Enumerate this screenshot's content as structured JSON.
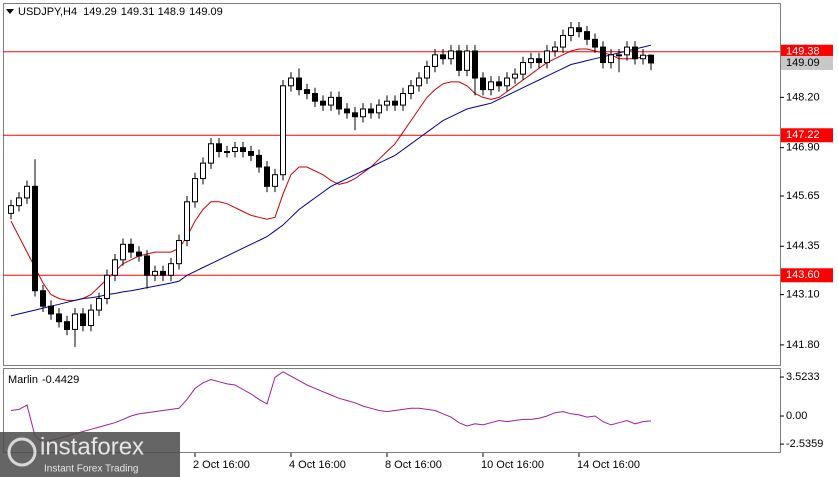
{
  "watermark": {
    "brand": "instaforex",
    "tagline": "Instant Forex Trading"
  },
  "chart_data": [
    {
      "type": "candlestick",
      "symbol": "USDJPY,H4",
      "categories": [
        null,
        null,
        null,
        null,
        null,
        null,
        null,
        null,
        null,
        null,
        null,
        null,
        null,
        null,
        null,
        null,
        null,
        null,
        null,
        null,
        null,
        null,
        null,
        "2 Oct 16:00",
        null,
        null,
        null,
        null,
        null,
        null,
        null,
        null,
        null,
        null,
        null,
        "4 Oct 16:00",
        null,
        null,
        null,
        null,
        null,
        null,
        null,
        null,
        null,
        null,
        null,
        "8 Oct 16:00",
        null,
        null,
        null,
        null,
        null,
        null,
        null,
        null,
        null,
        null,
        null,
        "10 Oct 16:00",
        null,
        null,
        null,
        null,
        null,
        null,
        null,
        null,
        null,
        null,
        null,
        "14 Oct 16:00",
        null,
        null,
        null,
        null,
        null,
        null,
        null,
        null,
        null
      ],
      "ylim": [
        141.28,
        150.64
      ],
      "yticks": [
        {
          "value": 148.2,
          "label": "148.20"
        },
        {
          "value": 146.9,
          "label": "146.90"
        },
        145.65,
        144.35,
        {
          "value": 143.1,
          "label": "143.10"
        },
        {
          "value": 141.8,
          "label": "141.80"
        }
      ],
      "up_color": "#ffffff",
      "down_color": "#000000",
      "outline_color": "#000000",
      "candles": {
        "open": [
          145.2,
          145.4,
          145.6,
          145.9,
          143.2,
          142.8,
          142.6,
          142.4,
          142.2,
          142.6,
          142.3,
          142.7,
          143.0,
          143.6,
          144.0,
          144.4,
          144.2,
          144.1,
          143.6,
          143.7,
          143.6,
          143.9,
          144.5,
          145.5,
          146.1,
          146.5,
          147.0,
          146.8,
          146.8,
          146.9,
          146.8,
          146.7,
          146.4,
          145.9,
          146.2,
          148.5,
          148.7,
          148.4,
          148.3,
          148.1,
          148.0,
          148.2,
          147.9,
          147.8,
          147.7,
          147.9,
          147.8,
          148.0,
          148.1,
          148.0,
          148.3,
          148.5,
          148.7,
          149.0,
          149.3,
          149.2,
          149.4,
          148.9,
          149.4,
          148.7,
          148.4,
          148.6,
          148.5,
          148.7,
          148.8,
          149.1,
          149.2,
          149.1,
          149.4,
          149.5,
          149.8,
          150.0,
          149.9,
          149.7,
          149.5,
          149.1,
          149.3,
          149.3,
          149.5,
          149.2,
          149.29
        ],
        "high": [
          145.55,
          145.75,
          146.05,
          146.6,
          143.35,
          142.95,
          142.75,
          142.55,
          142.75,
          142.75,
          142.85,
          143.15,
          143.75,
          144.15,
          144.55,
          144.55,
          144.35,
          144.25,
          143.85,
          143.85,
          144.05,
          144.65,
          145.65,
          146.25,
          146.65,
          147.15,
          147.15,
          146.95,
          147.05,
          147.05,
          146.95,
          146.85,
          146.55,
          146.35,
          148.65,
          148.85,
          148.95,
          148.55,
          148.45,
          148.25,
          148.35,
          148.35,
          148.05,
          147.95,
          148.05,
          148.05,
          148.15,
          148.25,
          148.25,
          148.45,
          148.65,
          148.85,
          149.15,
          149.45,
          149.45,
          149.55,
          149.55,
          149.55,
          149.55,
          148.85,
          148.75,
          148.75,
          148.85,
          148.95,
          149.25,
          149.35,
          149.35,
          149.55,
          149.65,
          149.95,
          150.15,
          150.15,
          150.05,
          149.85,
          149.65,
          149.45,
          149.45,
          149.65,
          149.65,
          149.45,
          149.31
        ],
        "low": [
          145.05,
          145.25,
          145.45,
          143.05,
          142.65,
          142.45,
          142.25,
          142.05,
          141.75,
          142.15,
          142.15,
          142.55,
          142.85,
          143.45,
          143.85,
          144.05,
          143.95,
          143.25,
          143.45,
          143.45,
          143.45,
          143.75,
          144.35,
          145.35,
          145.95,
          146.35,
          146.65,
          146.65,
          146.65,
          146.65,
          146.55,
          146.25,
          145.75,
          145.75,
          146.05,
          148.35,
          148.25,
          148.15,
          147.95,
          147.85,
          147.85,
          147.75,
          147.65,
          147.35,
          147.55,
          147.65,
          147.65,
          147.85,
          147.85,
          147.85,
          148.15,
          148.35,
          148.55,
          148.85,
          149.05,
          149.05,
          148.75,
          148.75,
          148.25,
          148.25,
          148.25,
          148.35,
          148.35,
          148.55,
          148.65,
          148.95,
          148.95,
          148.95,
          149.25,
          149.35,
          149.65,
          149.75,
          149.55,
          149.35,
          148.95,
          148.95,
          148.85,
          149.15,
          149.05,
          149.05,
          148.9
        ],
        "close": [
          145.4,
          145.6,
          145.9,
          143.2,
          142.8,
          142.6,
          142.4,
          142.2,
          142.6,
          142.3,
          142.7,
          143.0,
          143.6,
          144.0,
          144.4,
          144.2,
          144.1,
          143.6,
          143.7,
          143.6,
          143.9,
          144.5,
          145.5,
          146.1,
          146.5,
          147.0,
          146.8,
          146.8,
          146.9,
          146.8,
          146.7,
          146.4,
          145.9,
          146.2,
          148.5,
          148.7,
          148.4,
          148.3,
          148.1,
          148.0,
          148.2,
          147.9,
          147.8,
          147.7,
          147.9,
          147.8,
          148.0,
          148.1,
          148.0,
          148.3,
          148.5,
          148.7,
          149.0,
          149.3,
          149.2,
          149.4,
          148.9,
          149.4,
          148.7,
          148.4,
          148.6,
          148.5,
          148.7,
          148.8,
          149.1,
          149.2,
          149.1,
          149.4,
          149.5,
          149.8,
          150.0,
          149.9,
          149.7,
          149.5,
          149.1,
          149.3,
          149.3,
          149.5,
          149.2,
          149.29,
          149.09
        ]
      },
      "lines": [
        {
          "color": "#cc0000",
          "values": [
            145.0,
            144.6,
            144.2,
            143.8,
            143.4,
            143.1,
            143.0,
            142.95,
            142.95,
            143.0,
            143.1,
            143.3,
            143.5,
            143.7,
            143.9,
            144.0,
            144.1,
            144.15,
            144.2,
            144.2,
            144.2,
            144.3,
            144.6,
            145.0,
            145.3,
            145.5,
            145.5,
            145.45,
            145.35,
            145.25,
            145.15,
            145.1,
            145.05,
            145.1,
            145.7,
            146.2,
            146.4,
            146.4,
            146.3,
            146.2,
            146.05,
            145.95,
            146.0,
            146.1,
            146.25,
            146.4,
            146.6,
            146.8,
            147.0,
            147.3,
            147.6,
            147.9,
            148.2,
            148.4,
            148.55,
            148.6,
            148.6,
            148.5,
            148.3,
            148.2,
            148.15,
            148.2,
            148.35,
            148.5,
            148.65,
            148.8,
            148.95,
            149.1,
            149.2,
            149.3,
            149.4,
            149.45,
            149.45,
            149.4,
            149.35,
            149.3,
            149.2,
            149.2,
            149.2,
            149.25,
            149.3
          ]
        },
        {
          "color": "#00008b",
          "values": [
            142.55,
            142.6,
            142.65,
            142.7,
            142.75,
            142.8,
            142.85,
            142.9,
            142.95,
            143.0,
            143.02,
            143.05,
            143.1,
            143.13,
            143.17,
            143.2,
            143.24,
            143.28,
            143.32,
            143.36,
            143.4,
            143.45,
            143.6,
            143.7,
            143.8,
            143.9,
            144.0,
            144.1,
            144.2,
            144.3,
            144.4,
            144.5,
            144.6,
            144.75,
            144.9,
            145.1,
            145.3,
            145.45,
            145.6,
            145.75,
            145.9,
            146.0,
            146.1,
            146.2,
            146.3,
            146.4,
            146.5,
            146.6,
            146.7,
            146.85,
            147.0,
            147.15,
            147.3,
            147.45,
            147.6,
            147.7,
            147.8,
            147.9,
            147.95,
            148.0,
            148.05,
            148.15,
            148.25,
            148.35,
            148.45,
            148.55,
            148.65,
            148.75,
            148.85,
            148.95,
            149.05,
            149.1,
            149.15,
            149.2,
            149.25,
            149.3,
            149.35,
            149.4,
            149.45,
            149.5,
            149.55
          ]
        }
      ],
      "levels": {
        "color": "#ff0000",
        "values": [
          149.38,
          147.22,
          {
            "value": 143.6,
            "label": "143.60"
          }
        ]
      }
    },
    {
      "type": "line",
      "name": "Marlin",
      "color": "#a0209a",
      "values": [
        0.5,
        0.6,
        1.0,
        -1.8,
        -2.4,
        -2.2,
        -2.0,
        -1.8,
        -1.6,
        -1.4,
        -1.2,
        -1.0,
        -0.8,
        -0.6,
        -0.3,
        0.0,
        0.2,
        0.3,
        0.4,
        0.5,
        0.6,
        0.7,
        1.5,
        2.5,
        3.0,
        3.3,
        3.1,
        2.9,
        2.8,
        2.4,
        2.0,
        1.5,
        1.1,
        3.5,
        4.0,
        3.6,
        3.2,
        2.8,
        2.5,
        2.2,
        1.9,
        1.6,
        1.4,
        1.2,
        0.9,
        0.7,
        0.5,
        0.4,
        0.5,
        0.6,
        0.7,
        0.7,
        0.6,
        0.5,
        0.2,
        -0.1,
        -0.6,
        -0.9,
        -0.7,
        -0.8,
        -0.6,
        -0.4,
        -0.5,
        -0.4,
        -0.3,
        -0.3,
        -0.2,
        0.0,
        0.3,
        0.4,
        0.2,
        0.1,
        -0.1,
        0.0,
        -0.5,
        -0.8,
        -0.6,
        -0.4,
        -0.7,
        -0.5,
        -0.4429
      ],
      "ylim": [
        -3.25,
        4.34
      ],
      "yticks": [
        3.5233,
        {
          "value": 0,
          "label": "0.00"
        },
        -2.5359
      ]
    }
  ]
}
